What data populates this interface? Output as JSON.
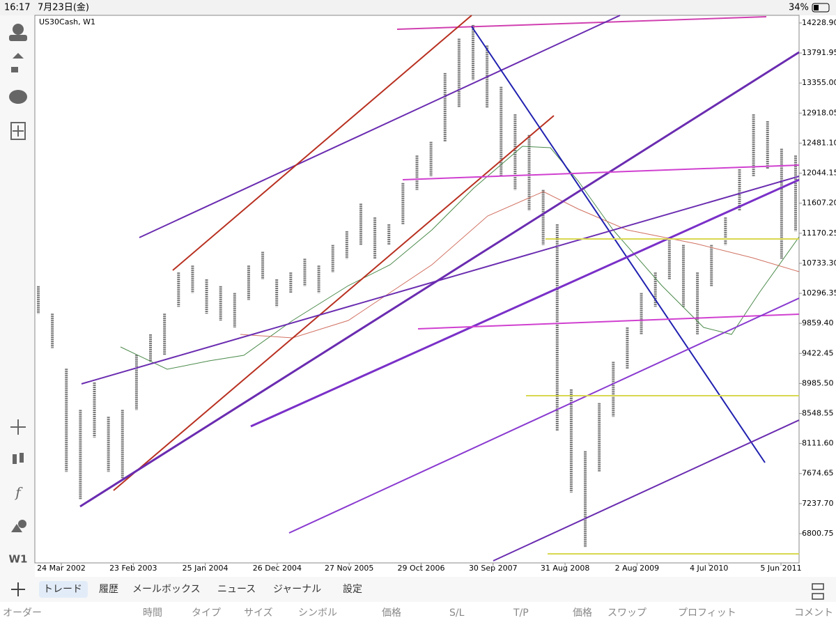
{
  "status_bar": {
    "time": "16:17",
    "date": "7月23日(金)",
    "battery": "34%"
  },
  "chart": {
    "symbol_label": "US30Cash, W1",
    "timeframe": "W1",
    "ylim": [
      6375,
      14340
    ],
    "yticks": [
      {
        "value": 14228.9,
        "label": "14228.90"
      },
      {
        "value": 13791.95,
        "label": "13791.95"
      },
      {
        "value": 13355,
        "label": "13355.00"
      },
      {
        "value": 12918.05,
        "label": "12918.05"
      },
      {
        "value": 12481.1,
        "label": "12481.10"
      },
      {
        "value": 12044.15,
        "label": "12044.15"
      },
      {
        "value": 11607.2,
        "label": "11607.20"
      },
      {
        "value": 11170.25,
        "label": "11170.25"
      },
      {
        "value": 10733.3,
        "label": "10733.30"
      },
      {
        "value": 10296.35,
        "label": "10296.35"
      },
      {
        "value": 9859.4,
        "label": "9859.40"
      },
      {
        "value": 9422.45,
        "label": "9422.45"
      },
      {
        "value": 8985.5,
        "label": "8985.50"
      },
      {
        "value": 8548.55,
        "label": "8548.55"
      },
      {
        "value": 8111.6,
        "label": "8111.60"
      },
      {
        "value": 7674.65,
        "label": "7674.65"
      },
      {
        "value": 7237.7,
        "label": "7237.70"
      },
      {
        "value": 6800.75,
        "label": "6800.75"
      }
    ],
    "x_labels": [
      "24 Mar 2002",
      "23 Feb 2003",
      "25 Jan 2004",
      "26 Dec 2004",
      "27 Nov 2005",
      "29 Oct 2006",
      "30 Sep 2007",
      "31 Aug 2008",
      "2 Aug 2009",
      "4 Jul 2010",
      "5 Jun 2011"
    ],
    "price_bars": [
      {
        "high": 10400,
        "low": 10000
      },
      {
        "high": 10000,
        "low": 9500
      },
      {
        "high": 9200,
        "low": 7700
      },
      {
        "high": 8600,
        "low": 7300
      },
      {
        "high": 9000,
        "low": 8200
      },
      {
        "high": 8500,
        "low": 7700
      },
      {
        "high": 8600,
        "low": 7600
      },
      {
        "high": 9400,
        "low": 8600
      },
      {
        "high": 9700,
        "low": 9300
      },
      {
        "high": 10000,
        "low": 9400
      },
      {
        "high": 10600,
        "low": 10100
      },
      {
        "high": 10700,
        "low": 10300
      },
      {
        "high": 10500,
        "low": 10000
      },
      {
        "high": 10400,
        "low": 9900
      },
      {
        "high": 10300,
        "low": 9800
      },
      {
        "high": 10700,
        "low": 10200
      },
      {
        "high": 10900,
        "low": 10500
      },
      {
        "high": 10500,
        "low": 10100
      },
      {
        "high": 10600,
        "low": 10300
      },
      {
        "high": 10800,
        "low": 10400
      },
      {
        "high": 10700,
        "low": 10300
      },
      {
        "high": 11000,
        "low": 10600
      },
      {
        "high": 11200,
        "low": 10800
      },
      {
        "high": 11600,
        "low": 11000
      },
      {
        "high": 11400,
        "low": 10800
      },
      {
        "high": 11300,
        "low": 11000
      },
      {
        "high": 11900,
        "low": 11300
      },
      {
        "high": 12300,
        "low": 11800
      },
      {
        "high": 12500,
        "low": 12000
      },
      {
        "high": 13500,
        "low": 12500
      },
      {
        "high": 14000,
        "low": 13000
      },
      {
        "high": 14200,
        "low": 13400
      },
      {
        "high": 13900,
        "low": 13000
      },
      {
        "high": 13300,
        "low": 12000
      },
      {
        "high": 12900,
        "low": 11800
      },
      {
        "high": 12600,
        "low": 11500
      },
      {
        "high": 11800,
        "low": 11000
      },
      {
        "high": 11300,
        "low": 8300
      },
      {
        "high": 8900,
        "low": 7400
      },
      {
        "high": 8000,
        "low": 6600
      },
      {
        "high": 8700,
        "low": 7700
      },
      {
        "high": 9300,
        "low": 8500
      },
      {
        "high": 9800,
        "low": 9200
      },
      {
        "high": 10300,
        "low": 9700
      },
      {
        "high": 10600,
        "low": 10100
      },
      {
        "high": 11100,
        "low": 10500
      },
      {
        "high": 11000,
        "low": 10100
      },
      {
        "high": 10600,
        "low": 9700
      },
      {
        "high": 11000,
        "low": 10400
      },
      {
        "high": 11400,
        "low": 11000
      },
      {
        "high": 12100,
        "low": 11500
      },
      {
        "high": 12900,
        "low": 12000
      },
      {
        "high": 12800,
        "low": 12100
      },
      {
        "high": 12400,
        "low": 10800
      },
      {
        "high": 12300,
        "low": 11200
      }
    ]
  },
  "tabs": {
    "items": [
      "トレード",
      "履歴",
      "メールボックス",
      "ニュース",
      "ジャーナル",
      "設定"
    ],
    "selected": 0
  },
  "columns": [
    "オーダー",
    "時間",
    "タイプ",
    "サイズ",
    "シンボル",
    "価格",
    "S/L",
    "T/P",
    "価格",
    "スワップ",
    "プロフィット",
    "コメント"
  ]
}
